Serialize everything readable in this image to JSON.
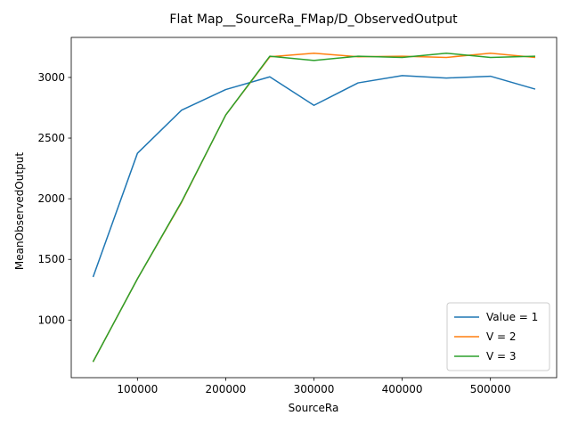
{
  "chart_data": {
    "type": "line",
    "title": "Flat Map__SourceRa_FMap/D_ObservedOutput",
    "xlabel": "SourceRa",
    "ylabel": "MeanObservedOutput",
    "x": [
      50000,
      100000,
      150000,
      200000,
      250000,
      300000,
      350000,
      400000,
      450000,
      500000,
      550000
    ],
    "xlim": [
      25000,
      575000
    ],
    "ylim": [
      525,
      3330
    ],
    "xticks": [
      100000,
      200000,
      300000,
      400000,
      500000
    ],
    "yticks": [
      1000,
      1500,
      2000,
      2500,
      3000
    ],
    "grid": false,
    "legend_position": "lower right",
    "series": [
      {
        "name": "Value = 1",
        "color": "#1f77b4",
        "values": [
          1360,
          2375,
          2730,
          2900,
          3005,
          2770,
          2955,
          3015,
          2995,
          3010,
          2905
        ]
      },
      {
        "name": "V = 2",
        "color": "#ff7f0e",
        "values": [
          660,
          1340,
          1970,
          2690,
          3170,
          3200,
          3170,
          3175,
          3165,
          3200,
          3165
        ]
      },
      {
        "name": "V = 3",
        "color": "#2ca02c",
        "values": [
          660,
          1340,
          1975,
          2690,
          3175,
          3140,
          3175,
          3165,
          3200,
          3165,
          3175
        ]
      }
    ]
  }
}
